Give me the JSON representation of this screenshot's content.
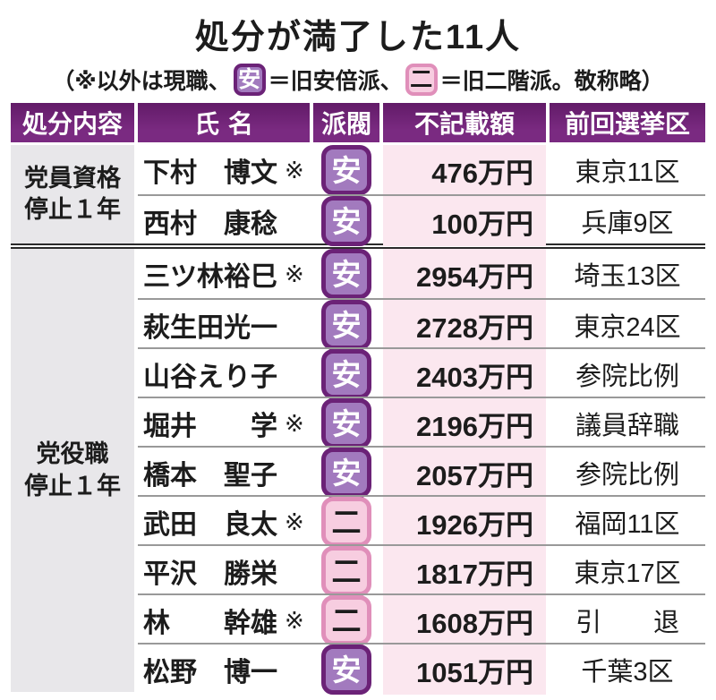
{
  "title": "処分が満了した11人",
  "subtitle": {
    "part1": "（※以外は現職、",
    "part2": "＝旧安倍派、",
    "part3": "＝旧二階派。敬称略）"
  },
  "legend": {
    "abe": {
      "label": "安",
      "meaning": "旧安倍派"
    },
    "nikai": {
      "label": "二",
      "meaning": "旧二階派"
    },
    "former_mark": "※"
  },
  "colors": {
    "header_bg": "#7a2a81",
    "header_bg_dark": "#621b68",
    "abe_fill": "#a27abe",
    "abe_border": "#6b2277",
    "abe_text": "#ffffff",
    "nikai_fill": "#f7cde0",
    "nikai_border": "#e08fba",
    "nikai_text": "#1c1c1c",
    "amount_col_bg": "#fbe7ef",
    "group_cell_bg": "#e8e7ea",
    "text": "#1c1c1c",
    "row_line": "#999999",
    "group_line": "#2b2b2b"
  },
  "table": {
    "headers": [
      "処分内容",
      "氏名",
      "派閥",
      "不記載額",
      "前回選挙区"
    ],
    "groups": [
      {
        "punishment": [
          "党員資格",
          "停止１年"
        ],
        "rows": [
          {
            "name": "下村　博文",
            "former": true,
            "faction": "安",
            "amount": "476万円",
            "district": "東京11区"
          },
          {
            "name": "西村　康稔",
            "former": false,
            "faction": "安",
            "amount": "100万円",
            "district": "兵庫9区"
          }
        ]
      },
      {
        "punishment": [
          "党役職",
          "停止１年"
        ],
        "rows": [
          {
            "name": "三ツ林裕巳",
            "former": true,
            "faction": "安",
            "amount": "2954万円",
            "district": "埼玉13区"
          },
          {
            "name": "萩生田光一",
            "former": false,
            "faction": "安",
            "amount": "2728万円",
            "district": "東京24区"
          },
          {
            "name": "山谷えり子",
            "former": false,
            "faction": "安",
            "amount": "2403万円",
            "district": "参院比例"
          },
          {
            "name": "堀井　　学",
            "former": true,
            "faction": "安",
            "amount": "2196万円",
            "district": "議員辞職"
          },
          {
            "name": "橋本　聖子",
            "former": false,
            "faction": "安",
            "amount": "2057万円",
            "district": "参院比例"
          },
          {
            "name": "武田　良太",
            "former": true,
            "faction": "二",
            "amount": "1926万円",
            "district": "福岡11区"
          },
          {
            "name": "平沢　勝栄",
            "former": false,
            "faction": "二",
            "amount": "1817万円",
            "district": "東京17区"
          },
          {
            "name": "林　　幹雄",
            "former": true,
            "faction": "二",
            "amount": "1608万円",
            "district": "引　　退"
          },
          {
            "name": "松野　博一",
            "former": false,
            "faction": "安",
            "amount": "1051万円",
            "district": "千葉3区"
          }
        ]
      }
    ]
  },
  "chart_data": {
    "type": "table",
    "title": "処分が満了した11人",
    "note": "（※以外は現職、安＝旧安倍派、二＝旧二階派。敬称略）",
    "columns": [
      "処分内容",
      "氏名",
      "派閥",
      "不記載額",
      "前回選挙区"
    ],
    "unit": "万円",
    "rows": [
      [
        "党員資格停止1年",
        "下村博文※",
        "安",
        476,
        "東京11区"
      ],
      [
        "党員資格停止1年",
        "西村康稔",
        "安",
        100,
        "兵庫9区"
      ],
      [
        "党役職停止1年",
        "三ツ林裕巳※",
        "安",
        2954,
        "埼玉13区"
      ],
      [
        "党役職停止1年",
        "萩生田光一",
        "安",
        2728,
        "東京24区"
      ],
      [
        "党役職停止1年",
        "山谷えり子",
        "安",
        2403,
        "参院比例"
      ],
      [
        "党役職停止1年",
        "堀井学※",
        "安",
        2196,
        "議員辞職"
      ],
      [
        "党役職停止1年",
        "橋本聖子",
        "安",
        2057,
        "参院比例"
      ],
      [
        "党役職停止1年",
        "武田良太※",
        "二",
        1926,
        "福岡11区"
      ],
      [
        "党役職停止1年",
        "平沢勝栄",
        "二",
        1817,
        "東京17区"
      ],
      [
        "党役職停止1年",
        "林幹雄※",
        "二",
        1608,
        "引退"
      ],
      [
        "党役職停止1年",
        "松野博一",
        "安",
        1051,
        "千葉3区"
      ]
    ]
  }
}
